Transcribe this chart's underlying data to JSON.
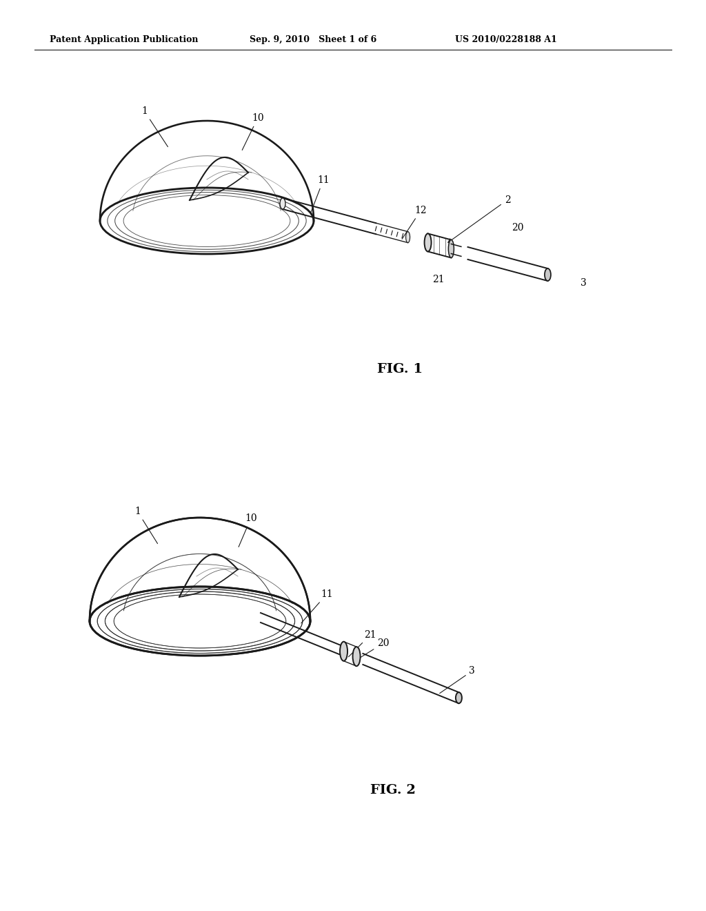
{
  "bg_color": "#ffffff",
  "header_left": "Patent Application Publication",
  "header_mid": "Sep. 9, 2010   Sheet 1 of 6",
  "header_right": "US 2010/0228188 A1",
  "fig1_label": "FIG. 1",
  "fig2_label": "FIG. 2",
  "line_color": "#1a1a1a",
  "text_color": "#000000",
  "label_fontsize": 10,
  "header_fontsize": 9,
  "figlabel_fontsize": 14
}
